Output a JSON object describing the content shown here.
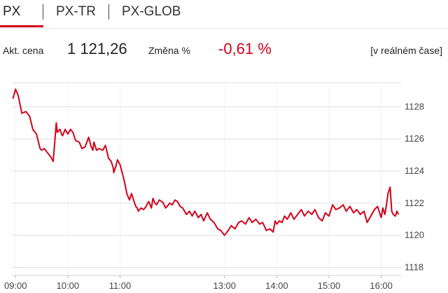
{
  "tabs": [
    {
      "label": "PX",
      "active": true
    },
    {
      "label": "PX-TR",
      "active": false
    },
    {
      "label": "PX-GLOB",
      "active": false
    }
  ],
  "quote": {
    "price_label": "Akt. cena",
    "price": "1 121,26",
    "change_label": "Změna %",
    "change": "-0,61 %",
    "realtime": "[v reálném čase]"
  },
  "colors": {
    "accent": "#d0021b",
    "line": "#d0021b",
    "grid": "#dedede"
  },
  "chart_data": {
    "type": "line",
    "ylim": [
      1117.5,
      1129.5
    ],
    "yticks": [
      1118,
      1120,
      1122,
      1124,
      1126,
      1128
    ],
    "xticks": [
      "09:00",
      "10:00",
      "11:00",
      "13:00",
      "14:00",
      "15:00",
      "16:00"
    ],
    "xtick_times": [
      9.0,
      10.0,
      11.0,
      13.0,
      14.0,
      15.0,
      16.0
    ],
    "xlim": [
      8.93,
      16.38
    ],
    "grid": true,
    "series": [
      {
        "x": [
          8.95,
          9.0,
          9.05,
          9.12,
          9.2,
          9.27,
          9.33,
          9.4,
          9.47,
          9.5,
          9.55,
          9.62,
          9.67,
          9.72,
          9.78,
          9.8,
          9.82,
          9.85,
          9.88,
          9.9,
          9.95,
          10.0,
          10.05,
          10.1,
          10.15,
          10.22,
          10.27,
          10.33,
          10.4,
          10.45,
          10.48,
          10.5,
          10.52,
          10.55,
          10.6,
          10.67,
          10.72,
          10.78,
          10.83,
          10.87,
          10.88,
          10.92,
          10.95,
          11.0,
          11.05,
          11.08,
          11.1,
          11.13,
          11.18,
          11.22,
          11.27,
          11.3,
          11.33,
          11.35,
          11.4,
          11.45,
          11.5,
          11.53,
          11.55,
          11.6,
          11.63,
          11.67,
          11.7,
          11.75,
          11.8,
          11.83,
          11.87,
          11.9,
          11.95,
          12.0,
          12.05,
          12.1,
          12.15,
          12.2,
          12.27,
          12.33,
          12.38,
          12.43,
          12.5,
          12.55,
          12.6,
          12.67,
          12.73,
          12.8,
          12.87,
          12.93,
          13.0,
          13.07,
          13.13,
          13.2,
          13.27,
          13.33,
          13.4,
          13.47,
          13.53,
          13.6,
          13.67,
          13.73,
          13.8,
          13.87,
          13.93,
          13.97,
          14.0,
          14.05,
          14.1,
          14.15,
          14.2,
          14.27,
          14.33,
          14.4,
          14.47,
          14.53,
          14.6,
          14.67,
          14.73,
          14.8,
          14.87,
          14.93,
          15.0,
          15.07,
          15.13,
          15.2,
          15.27,
          15.33,
          15.4,
          15.47,
          15.53,
          15.6,
          15.67,
          15.73,
          15.8,
          15.87,
          15.93,
          16.0,
          16.03,
          16.07,
          16.1,
          16.13,
          16.17,
          16.2,
          16.23,
          16.27,
          16.3,
          16.33
        ],
        "y": [
          1128.5,
          1129.1,
          1128.7,
          1127.6,
          1127.7,
          1127.4,
          1126.6,
          1126.3,
          1125.4,
          1125.3,
          1125.4,
          1125.1,
          1124.9,
          1124.6,
          1127.0,
          1126.4,
          1126.5,
          1126.6,
          1126.3,
          1126.2,
          1126.6,
          1126.3,
          1126.6,
          1126.4,
          1125.9,
          1125.8,
          1125.4,
          1125.5,
          1126.1,
          1125.5,
          1125.3,
          1125.8,
          1125.6,
          1125.3,
          1125.4,
          1125.3,
          1125.6,
          1124.8,
          1124.6,
          1124.2,
          1123.9,
          1124.3,
          1124.7,
          1124.4,
          1123.8,
          1123.4,
          1123.1,
          1122.6,
          1122.2,
          1122.6,
          1122.1,
          1121.8,
          1121.7,
          1121.5,
          1121.7,
          1121.6,
          1121.8,
          1122.0,
          1122.1,
          1121.7,
          1122.3,
          1122.0,
          1121.9,
          1122.2,
          1122.1,
          1122.0,
          1121.7,
          1121.8,
          1122.0,
          1121.9,
          1122.2,
          1122.1,
          1121.8,
          1121.7,
          1121.3,
          1121.5,
          1121.2,
          1121.5,
          1121.1,
          1121.3,
          1120.9,
          1121.4,
          1121.0,
          1120.8,
          1120.4,
          1120.3,
          1120.0,
          1120.3,
          1120.6,
          1120.4,
          1120.8,
          1120.9,
          1120.7,
          1121.1,
          1120.8,
          1121.0,
          1120.7,
          1120.8,
          1120.3,
          1120.4,
          1120.2,
          1120.9,
          1120.7,
          1120.9,
          1120.8,
          1121.2,
          1121.0,
          1121.4,
          1121.0,
          1121.3,
          1121.6,
          1121.2,
          1121.5,
          1121.3,
          1121.6,
          1121.1,
          1120.9,
          1121.4,
          1121.2,
          1121.9,
          1121.6,
          1121.7,
          1121.9,
          1121.5,
          1121.8,
          1121.4,
          1121.6,
          1121.3,
          1121.5,
          1120.8,
          1121.2,
          1121.6,
          1121.8,
          1121.1,
          1121.7,
          1121.3,
          1121.9,
          1122.6,
          1123.0,
          1121.5,
          1121.3,
          1121.2,
          1121.5,
          1121.3
        ]
      }
    ]
  }
}
